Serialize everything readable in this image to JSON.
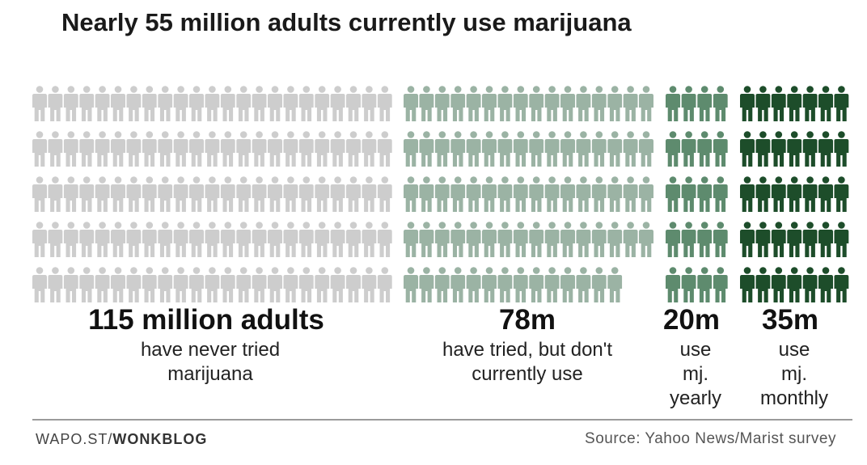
{
  "title": "Nearly 55 million adults currently use marijuana",
  "chart_data": {
    "type": "pictograph",
    "unit": "adults",
    "groups": [
      {
        "value": 115,
        "label": "115 million adults",
        "description": [
          "have never tried",
          "marijuana"
        ],
        "icons": 115,
        "color": "#cdcdcd"
      },
      {
        "value": 78,
        "label": "78m",
        "description": [
          "have tried, but don't",
          "currently use"
        ],
        "icons": 78,
        "color": "#9bb3a4"
      },
      {
        "value": 20,
        "label": "20m",
        "description": [
          "use",
          "mj.",
          "yearly"
        ],
        "icons": 20,
        "color": "#5e8b6e"
      },
      {
        "value": 35,
        "label": "35m",
        "description": [
          "use",
          "mj.",
          "monthly"
        ],
        "icons": 35,
        "color": "#1d4d2a"
      }
    ]
  },
  "footer": {
    "brand_prefix": "WAPO.ST/",
    "brand_bold": "WONKBLOG",
    "source": "Source: Yahoo News/Marist survey"
  }
}
